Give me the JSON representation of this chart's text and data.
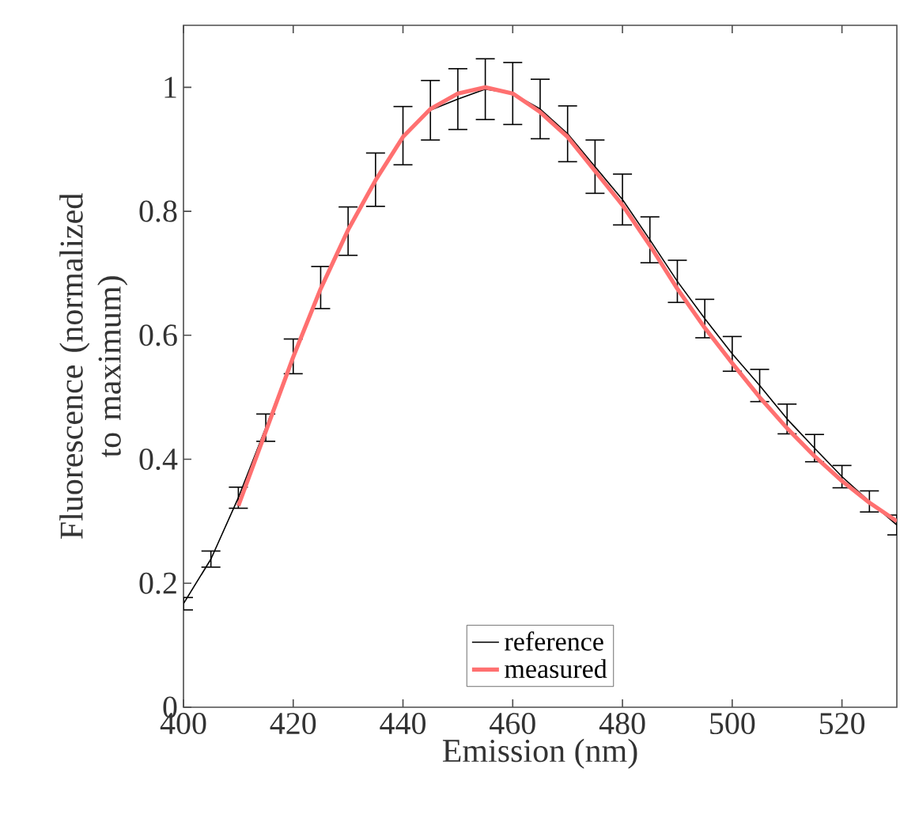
{
  "chart_data": {
    "type": "line",
    "xlabel": "Emission (nm)",
    "ylabel": "Fluorescence (normalized to maximum)",
    "xlim": [
      400,
      530
    ],
    "ylim": [
      0,
      1.1
    ],
    "xticks": [
      400,
      420,
      440,
      460,
      480,
      500,
      520
    ],
    "yticks": [
      0,
      0.2,
      0.4,
      0.6,
      0.8,
      1
    ],
    "legend": "bottom",
    "grid": false,
    "marker": "none",
    "line_style": "solid",
    "series": [
      {
        "name": "reference",
        "color": "#000000",
        "x": [
          400,
          405,
          410,
          415,
          420,
          425,
          430,
          435,
          440,
          445,
          450,
          455,
          460,
          465,
          470,
          475,
          480,
          485,
          490,
          495,
          500,
          505,
          510,
          515,
          520,
          525,
          530
        ],
        "values": [
          0.167,
          0.239,
          0.338,
          0.451,
          0.566,
          0.677,
          0.768,
          0.851,
          0.922,
          0.963,
          0.981,
          0.997,
          0.99,
          0.965,
          0.925,
          0.872,
          0.819,
          0.754,
          0.687,
          0.627,
          0.57,
          0.519,
          0.465,
          0.418,
          0.372,
          0.332,
          0.294
        ],
        "errors": [
          0.01,
          0.013,
          0.017,
          0.022,
          0.028,
          0.034,
          0.039,
          0.043,
          0.047,
          0.048,
          0.049,
          0.049,
          0.05,
          0.048,
          0.045,
          0.043,
          0.041,
          0.037,
          0.034,
          0.031,
          0.028,
          0.026,
          0.024,
          0.022,
          0.018,
          0.017,
          0.016
        ]
      },
      {
        "name": "measured",
        "color": "#ff7070",
        "x": [
          410,
          415,
          420,
          425,
          430,
          435,
          440,
          445,
          450,
          455,
          460,
          465,
          470,
          475,
          480,
          485,
          490,
          495,
          500,
          505,
          510,
          515,
          520,
          525,
          530
        ],
        "values": [
          0.325,
          0.445,
          0.565,
          0.675,
          0.77,
          0.85,
          0.92,
          0.965,
          0.99,
          1.0,
          0.99,
          0.96,
          0.92,
          0.865,
          0.81,
          0.745,
          0.675,
          0.612,
          0.555,
          0.5,
          0.45,
          0.405,
          0.365,
          0.33,
          0.3
        ]
      }
    ]
  }
}
